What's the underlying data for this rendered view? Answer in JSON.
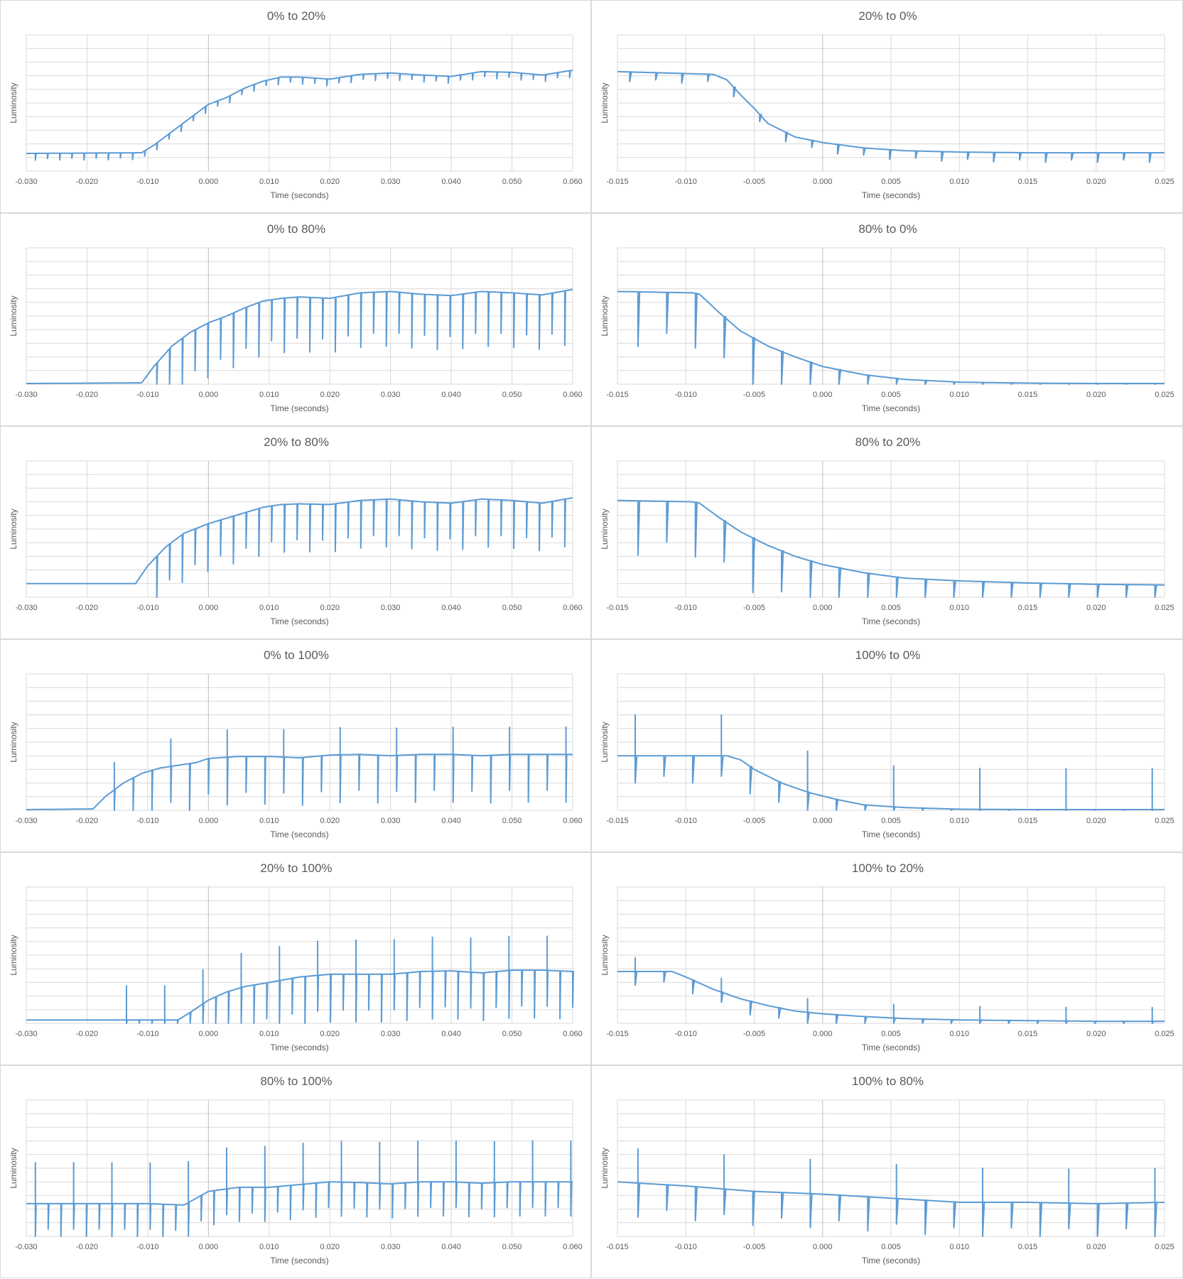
{
  "chart_data": [
    {
      "type": "line",
      "title": "0% to 20%",
      "xlabel": "Time (seconds)",
      "ylabel": "Luminosity",
      "xlim": [
        -0.03,
        0.06
      ],
      "ylim": [
        0,
        10
      ],
      "xticks": [
        "-0.030",
        "-0.020",
        "-0.010",
        "0.000",
        "0.010",
        "0.020",
        "0.030",
        "0.040",
        "0.050",
        "0.060"
      ],
      "series": [
        {
          "x": [
            -0.03,
            -0.011,
            -0.009,
            -0.006,
            -0.003,
            0.0,
            0.003,
            0.006,
            0.009,
            0.012,
            0.015,
            0.02,
            0.025,
            0.03,
            0.035,
            0.04,
            0.045,
            0.05,
            0.055,
            0.06
          ],
          "y": [
            1.3,
            1.35,
            1.9,
            2.9,
            3.9,
            4.9,
            5.4,
            6.1,
            6.6,
            6.9,
            6.9,
            6.75,
            7.1,
            7.2,
            7.05,
            6.95,
            7.3,
            7.25,
            7.05,
            7.4
          ]
        }
      ],
      "spikes": {
        "start": -0.0285,
        "interval": 0.002,
        "depth": -0.5
      }
    },
    {
      "type": "line",
      "title": "20% to 0%",
      "xlabel": "Time (seconds)",
      "ylabel": "Luminosity",
      "xlim": [
        -0.015,
        0.025
      ],
      "ylim": [
        0,
        10
      ],
      "xticks": [
        "-0.015",
        "-0.010",
        "-0.005",
        "0.000",
        "0.005",
        "0.010",
        "0.015",
        "0.020",
        "0.025"
      ],
      "series": [
        {
          "x": [
            -0.015,
            -0.008,
            -0.007,
            -0.006,
            -0.005,
            -0.004,
            -0.003,
            -0.002,
            0.0,
            0.003,
            0.006,
            0.01,
            0.015,
            0.02,
            0.025
          ],
          "y": [
            7.3,
            7.1,
            6.7,
            5.6,
            4.6,
            3.5,
            3.0,
            2.5,
            2.1,
            1.7,
            1.5,
            1.4,
            1.35,
            1.35,
            1.35
          ]
        }
      ],
      "spikes": {
        "start": -0.0141,
        "interval": 0.0019,
        "depth": -0.7
      }
    },
    {
      "type": "line",
      "title": "0% to 80%",
      "xlabel": "Time (seconds)",
      "ylabel": "Luminosity",
      "xlim": [
        -0.03,
        0.06
      ],
      "ylim": [
        0,
        10
      ],
      "xticks": [
        "-0.030",
        "-0.020",
        "-0.010",
        "0.000",
        "0.010",
        "0.020",
        "0.030",
        "0.040",
        "0.050",
        "0.060"
      ],
      "series": [
        {
          "x": [
            -0.03,
            -0.011,
            -0.009,
            -0.006,
            -0.003,
            0.0,
            0.003,
            0.006,
            0.009,
            0.012,
            0.015,
            0.02,
            0.025,
            0.03,
            0.035,
            0.04,
            0.045,
            0.05,
            0.055,
            0.06
          ],
          "y": [
            0.05,
            0.1,
            1.3,
            2.8,
            3.8,
            4.5,
            5.0,
            5.6,
            6.1,
            6.3,
            6.4,
            6.3,
            6.7,
            6.8,
            6.6,
            6.5,
            6.8,
            6.7,
            6.55,
            6.95
          ]
        }
      ],
      "spikes": {
        "start": -0.0085,
        "interval": 0.0021,
        "depth": -4.0
      }
    },
    {
      "type": "line",
      "title": "80% to 0%",
      "xlabel": "Time (seconds)",
      "ylabel": "Luminosity",
      "xlim": [
        -0.015,
        0.025
      ],
      "ylim": [
        0,
        10
      ],
      "xticks": [
        "-0.015",
        "-0.010",
        "-0.005",
        "0.000",
        "0.005",
        "0.010",
        "0.015",
        "0.020",
        "0.025"
      ],
      "series": [
        {
          "x": [
            -0.015,
            -0.0095,
            -0.009,
            -0.0075,
            -0.006,
            -0.004,
            -0.002,
            0.0,
            0.003,
            0.006,
            0.01,
            0.015,
            0.02,
            0.025
          ],
          "y": [
            6.8,
            6.7,
            6.6,
            5.2,
            3.9,
            2.8,
            2.0,
            1.3,
            0.7,
            0.35,
            0.15,
            0.08,
            0.05,
            0.05
          ]
        }
      ],
      "spikes": {
        "start": -0.0135,
        "interval": 0.0021,
        "depth": -4.0
      }
    },
    {
      "type": "line",
      "title": "20% to 80%",
      "xlabel": "Time (seconds)",
      "ylabel": "Luminosity",
      "xlim": [
        -0.03,
        0.06
      ],
      "ylim": [
        0,
        10
      ],
      "xticks": [
        "-0.030",
        "-0.020",
        "-0.010",
        "0.000",
        "0.010",
        "0.020",
        "0.030",
        "0.040",
        "0.050",
        "0.060"
      ],
      "series": [
        {
          "x": [
            -0.03,
            -0.012,
            -0.01,
            -0.007,
            -0.004,
            0.0,
            0.003,
            0.006,
            0.009,
            0.012,
            0.015,
            0.02,
            0.025,
            0.03,
            0.035,
            0.04,
            0.045,
            0.05,
            0.055,
            0.06
          ],
          "y": [
            1.0,
            1.0,
            2.3,
            3.7,
            4.7,
            5.4,
            5.8,
            6.2,
            6.6,
            6.8,
            6.85,
            6.8,
            7.1,
            7.2,
            7.0,
            6.9,
            7.2,
            7.1,
            6.9,
            7.3
          ]
        }
      ],
      "spikes": {
        "start": -0.0085,
        "interval": 0.0021,
        "depth": -3.5
      }
    },
    {
      "type": "line",
      "title": "80% to 20%",
      "xlabel": "Time (seconds)",
      "ylabel": "Luminosity",
      "xlim": [
        -0.015,
        0.025
      ],
      "ylim": [
        0,
        10
      ],
      "xticks": [
        "-0.015",
        "-0.010",
        "-0.005",
        "0.000",
        "0.005",
        "0.010",
        "0.015",
        "0.020",
        "0.025"
      ],
      "series": [
        {
          "x": [
            -0.015,
            -0.0095,
            -0.009,
            -0.0075,
            -0.006,
            -0.004,
            -0.002,
            0.0,
            0.003,
            0.006,
            0.01,
            0.015,
            0.02,
            0.025
          ],
          "y": [
            7.1,
            7.0,
            6.9,
            5.8,
            4.8,
            3.8,
            3.0,
            2.4,
            1.8,
            1.4,
            1.2,
            1.05,
            0.95,
            0.9
          ]
        }
      ],
      "spikes": {
        "start": -0.0135,
        "interval": 0.0021,
        "depth": -4.0
      }
    },
    {
      "type": "line",
      "title": "0% to 100%",
      "xlabel": "Time (seconds)",
      "ylabel": "Luminosity",
      "xlim": [
        -0.03,
        0.06
      ],
      "ylim": [
        0,
        10
      ],
      "xticks": [
        "-0.030",
        "-0.020",
        "-0.010",
        "0.000",
        "0.010",
        "0.020",
        "0.030",
        "0.040",
        "0.050",
        "0.060"
      ],
      "series": [
        {
          "x": [
            -0.03,
            -0.019,
            -0.017,
            -0.014,
            -0.011,
            -0.008,
            -0.005,
            -0.002,
            0.0,
            0.005,
            0.01,
            0.015,
            0.02,
            0.025,
            0.03,
            0.035,
            0.04,
            0.045,
            0.05,
            0.055,
            0.06
          ],
          "y": [
            0.05,
            0.1,
            1.0,
            2.0,
            2.7,
            3.1,
            3.3,
            3.5,
            3.8,
            3.95,
            3.95,
            3.85,
            4.05,
            4.1,
            4.0,
            4.1,
            4.1,
            4.0,
            4.1,
            4.1,
            4.1
          ]
        }
      ],
      "spikes": {
        "start": -0.0155,
        "interval": 0.0031,
        "depth": -3.5,
        "up": 2.0
      }
    },
    {
      "type": "line",
      "title": "100% to 0%",
      "xlabel": "Time (seconds)",
      "ylabel": "Luminosity",
      "xlim": [
        -0.015,
        0.025
      ],
      "ylim": [
        0,
        10
      ],
      "xticks": [
        "-0.015",
        "-0.010",
        "-0.005",
        "0.000",
        "0.005",
        "0.010",
        "0.015",
        "0.020",
        "0.025"
      ],
      "series": [
        {
          "x": [
            -0.015,
            -0.007,
            -0.006,
            -0.005,
            -0.003,
            -0.001,
            0.001,
            0.003,
            0.006,
            0.01,
            0.015,
            0.02,
            0.025
          ],
          "y": [
            4.0,
            4.0,
            3.7,
            3.0,
            2.0,
            1.3,
            0.8,
            0.4,
            0.2,
            0.08,
            0.05,
            0.05,
            0.05
          ]
        }
      ],
      "spikes": {
        "start": -0.0137,
        "interval": 0.0021,
        "depth": -2.0,
        "up": 3.0
      }
    },
    {
      "type": "line",
      "title": "20% to 100%",
      "xlabel": "Time (seconds)",
      "ylabel": "Luminosity",
      "xlim": [
        -0.03,
        0.06
      ],
      "ylim": [
        0,
        10
      ],
      "xticks": [
        "-0.030",
        "-0.020",
        "-0.010",
        "0.000",
        "0.010",
        "0.020",
        "0.030",
        "0.040",
        "0.050",
        "0.060"
      ],
      "series": [
        {
          "x": [
            -0.03,
            -0.005,
            -0.003,
            0.0,
            0.003,
            0.006,
            0.01,
            0.015,
            0.02,
            0.025,
            0.03,
            0.035,
            0.04,
            0.045,
            0.05,
            0.055,
            0.06
          ],
          "y": [
            0.25,
            0.25,
            0.8,
            1.7,
            2.3,
            2.7,
            3.0,
            3.4,
            3.6,
            3.6,
            3.6,
            3.8,
            3.85,
            3.7,
            3.9,
            3.9,
            3.8
          ]
        }
      ],
      "spikes": {
        "start": -0.0135,
        "interval": 0.0021,
        "depth": -3.5,
        "up": 2.5
      }
    },
    {
      "type": "line",
      "title": "100% to 20%",
      "xlabel": "Time (seconds)",
      "ylabel": "Luminosity",
      "xlim": [
        -0.015,
        0.025
      ],
      "ylim": [
        0,
        10
      ],
      "xticks": [
        "-0.015",
        "-0.010",
        "-0.005",
        "0.000",
        "0.005",
        "0.010",
        "0.015",
        "0.020",
        "0.025"
      ],
      "series": [
        {
          "x": [
            -0.015,
            -0.011,
            -0.01,
            -0.008,
            -0.006,
            -0.004,
            -0.002,
            0.0,
            0.003,
            0.006,
            0.01,
            0.015,
            0.02,
            0.025
          ],
          "y": [
            3.8,
            3.8,
            3.4,
            2.5,
            1.8,
            1.3,
            0.9,
            0.7,
            0.5,
            0.35,
            0.25,
            0.2,
            0.15,
            0.15
          ]
        }
      ],
      "spikes": {
        "start": -0.0137,
        "interval": 0.0021,
        "depth": -1.0,
        "up": 1.0
      }
    },
    {
      "type": "line",
      "title": "80% to 100%",
      "xlabel": "Time (seconds)",
      "ylabel": "Luminosity",
      "xlim": [
        -0.03,
        0.06
      ],
      "ylim": [
        0,
        10
      ],
      "xticks": [
        "-0.030",
        "-0.020",
        "-0.010",
        "0.000",
        "0.010",
        "0.020",
        "0.030",
        "0.040",
        "0.050",
        "0.060"
      ],
      "series": [
        {
          "x": [
            -0.03,
            -0.02,
            -0.01,
            -0.004,
            -0.002,
            0.0,
            0.005,
            0.01,
            0.015,
            0.02,
            0.025,
            0.03,
            0.035,
            0.04,
            0.045,
            0.05,
            0.055,
            0.06
          ],
          "y": [
            2.4,
            2.4,
            2.4,
            2.3,
            2.8,
            3.3,
            3.6,
            3.6,
            3.8,
            4.0,
            3.95,
            3.85,
            4.0,
            4.0,
            3.9,
            4.0,
            4.0,
            4.0
          ]
        }
      ],
      "spikes": {
        "start": -0.0285,
        "interval": 0.0021,
        "depth": -2.5,
        "up": 3.0
      }
    },
    {
      "type": "line",
      "title": "100% to 80%",
      "xlabel": "Time (seconds)",
      "ylabel": "Luminosity",
      "xlim": [
        -0.015,
        0.025
      ],
      "ylim": [
        0,
        10
      ],
      "xticks": [
        "-0.015",
        "-0.010",
        "-0.005",
        "0.000",
        "0.005",
        "0.010",
        "0.015",
        "0.020",
        "0.025"
      ],
      "series": [
        {
          "x": [
            -0.015,
            -0.01,
            -0.005,
            0.0,
            0.005,
            0.01,
            0.015,
            0.02,
            0.025
          ],
          "y": [
            4.0,
            3.7,
            3.3,
            3.1,
            2.8,
            2.5,
            2.5,
            2.4,
            2.5
          ]
        }
      ],
      "spikes": {
        "start": -0.0135,
        "interval": 0.0021,
        "depth": -2.5,
        "up": 2.5
      }
    }
  ]
}
